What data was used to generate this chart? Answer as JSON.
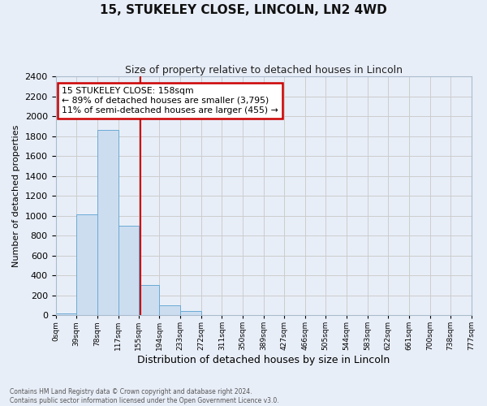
{
  "title": "15, STUKELEY CLOSE, LINCOLN, LN2 4WD",
  "subtitle": "Size of property relative to detached houses in Lincoln",
  "xlabel": "Distribution of detached houses by size in Lincoln",
  "ylabel": "Number of detached properties",
  "bar_edges": [
    0,
    39,
    78,
    117,
    155,
    194,
    233,
    272,
    311,
    350,
    389,
    427,
    466,
    505,
    544,
    583,
    622,
    661,
    700,
    738,
    777
  ],
  "bar_heights": [
    20,
    1010,
    1860,
    900,
    300,
    100,
    45,
    0,
    0,
    0,
    0,
    0,
    0,
    0,
    0,
    0,
    0,
    0,
    0,
    0
  ],
  "tick_labels": [
    "0sqm",
    "39sqm",
    "78sqm",
    "117sqm",
    "155sqm",
    "194sqm",
    "233sqm",
    "272sqm",
    "311sqm",
    "350sqm",
    "389sqm",
    "427sqm",
    "466sqm",
    "505sqm",
    "544sqm",
    "583sqm",
    "622sqm",
    "661sqm",
    "700sqm",
    "738sqm",
    "777sqm"
  ],
  "bar_color": "#ccddf0",
  "bar_edge_color": "#6aaad4",
  "red_line_x": 158,
  "annotation_line1": "15 STUKELEY CLOSE: 158sqm",
  "annotation_line2": "← 89% of detached houses are smaller (3,795)",
  "annotation_line3": "11% of semi-detached houses are larger (455) →",
  "annotation_box_color": "#ffffff",
  "annotation_box_edge": "#cc0000",
  "ylim": [
    0,
    2400
  ],
  "yticks": [
    0,
    200,
    400,
    600,
    800,
    1000,
    1200,
    1400,
    1600,
    1800,
    2000,
    2200,
    2400
  ],
  "grid_color": "#cccccc",
  "bg_color": "#e8eef8",
  "plot_bg_color": "#e8eef8",
  "footer_line1": "Contains HM Land Registry data © Crown copyright and database right 2024.",
  "footer_line2": "Contains public sector information licensed under the Open Government Licence v3.0."
}
